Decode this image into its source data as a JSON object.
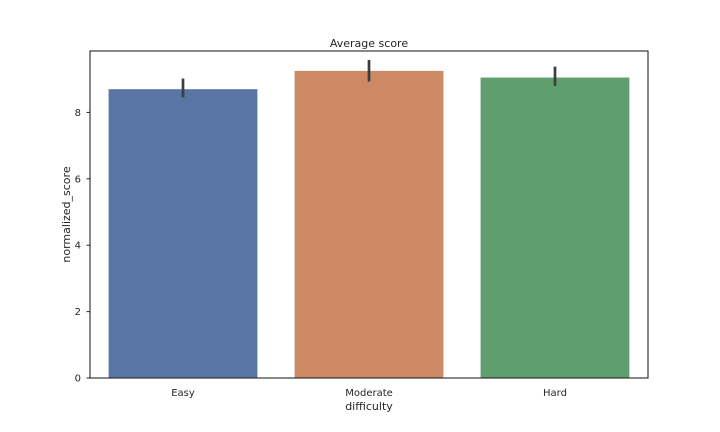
{
  "chart_data": {
    "type": "bar",
    "title": "Average score",
    "xlabel": "difficulty",
    "ylabel": "normalized_score",
    "categories": [
      "Easy",
      "Moderate",
      "Hard"
    ],
    "values": [
      8.7,
      9.25,
      9.05
    ],
    "error_bars": [
      [
        8.45,
        9.02
      ],
      [
        8.93,
        9.58
      ],
      [
        8.8,
        9.38
      ]
    ],
    "ylim": [
      0,
      9.85
    ],
    "yticks": [
      0,
      2,
      4,
      6,
      8
    ],
    "colors": [
      "#5875a4",
      "#cc8963",
      "#5f9e6e"
    ],
    "errorbar_color": "#3d3d3d",
    "grid": false,
    "legend": "none"
  }
}
